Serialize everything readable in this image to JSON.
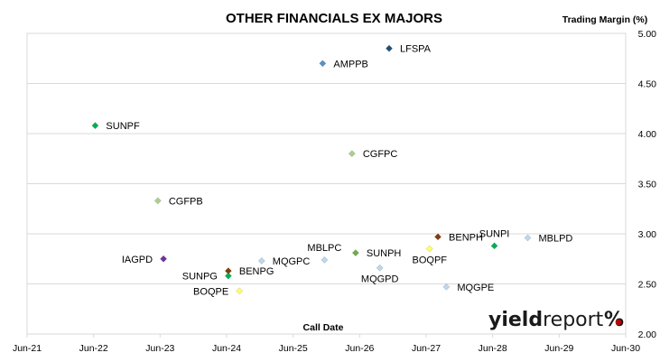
{
  "chart_data": {
    "type": "scatter",
    "title": "OTHER FINANCIALS EX MAJORS",
    "xlabel": "Call Date",
    "ylabel": "Trading Margin (%)",
    "x_axis": {
      "type": "date",
      "min": "2021-06-01",
      "max": "2030-06-01",
      "ticks": [
        "Jun-21",
        "Jun-22",
        "Jun-23",
        "Jun-24",
        "Jun-25",
        "Jun-26",
        "Jun-27",
        "Jun-28",
        "Jun-29",
        "Jun-30"
      ]
    },
    "y_axis": {
      "min": 2.0,
      "max": 5.0,
      "position": "right",
      "ticks": [
        "2.00",
        "2.50",
        "3.00",
        "3.50",
        "4.00",
        "4.50",
        "5.00"
      ]
    },
    "grid": {
      "horizontal": true,
      "vertical": false
    },
    "points": [
      {
        "label": "LFSPA",
        "x": "2026-11-10",
        "y": 4.85,
        "color": "#1f4e79",
        "label_side": "right"
      },
      {
        "label": "AMPPB",
        "x": "2025-11-10",
        "y": 4.7,
        "color": "#5b8fc7",
        "label_side": "right"
      },
      {
        "label": "SUNPF",
        "x": "2022-06-10",
        "y": 4.08,
        "color": "#00b050",
        "label_side": "right"
      },
      {
        "label": "CGFPC",
        "x": "2026-04-20",
        "y": 3.8,
        "color": "#a9d18e",
        "label_side": "right"
      },
      {
        "label": "CGFPB",
        "x": "2023-05-20",
        "y": 3.33,
        "color": "#a9d18e",
        "label_side": "right"
      },
      {
        "label": "MBLPD",
        "x": "2028-12-10",
        "y": 2.96,
        "color": "#bdd7ee",
        "label_side": "right"
      },
      {
        "label": "BENPH",
        "x": "2027-08-05",
        "y": 2.97,
        "color": "#843c0c",
        "label_side": "right"
      },
      {
        "label": "SUNPI",
        "x": "2028-06-10",
        "y": 2.88,
        "color": "#00b050",
        "label_side": "above"
      },
      {
        "label": "BOQPF",
        "x": "2027-06-20",
        "y": 2.85,
        "color": "#ffff66",
        "label_side": "below"
      },
      {
        "label": "SUNPH",
        "x": "2026-05-10",
        "y": 2.81,
        "color": "#70ad47",
        "label_side": "right"
      },
      {
        "label": "IAGPD",
        "x": "2023-06-20",
        "y": 2.75,
        "color": "#7030a0",
        "label_side": "left"
      },
      {
        "label": "MBLPC",
        "x": "2025-11-20",
        "y": 2.74,
        "color": "#bdd7ee",
        "label_side": "above"
      },
      {
        "label": "MQGPC",
        "x": "2024-12-10",
        "y": 2.73,
        "color": "#bdd7ee",
        "label_side": "right"
      },
      {
        "label": "MQGPD",
        "x": "2026-09-20",
        "y": 2.66,
        "color": "#bdd7ee",
        "label_side": "below"
      },
      {
        "label": "BENPG",
        "x": "2024-06-10",
        "y": 2.63,
        "color": "#843c0c",
        "label_side": "right"
      },
      {
        "label": "SUNPG",
        "x": "2024-06-10",
        "y": 2.58,
        "color": "#00b050",
        "label_side": "left"
      },
      {
        "label": "MQGPE",
        "x": "2027-09-20",
        "y": 2.47,
        "color": "#bdd7ee",
        "label_side": "right"
      },
      {
        "label": "BOQPE",
        "x": "2024-08-10",
        "y": 2.43,
        "color": "#ffff66",
        "label_side": "left"
      }
    ]
  },
  "branding": {
    "logo_bold": "yield",
    "logo_regular": "report",
    "logo_symbol": "%",
    "logo_color_dark": "#1a1a1a",
    "logo_color_green": "#00a651",
    "logo_color_red": "#c00000"
  }
}
